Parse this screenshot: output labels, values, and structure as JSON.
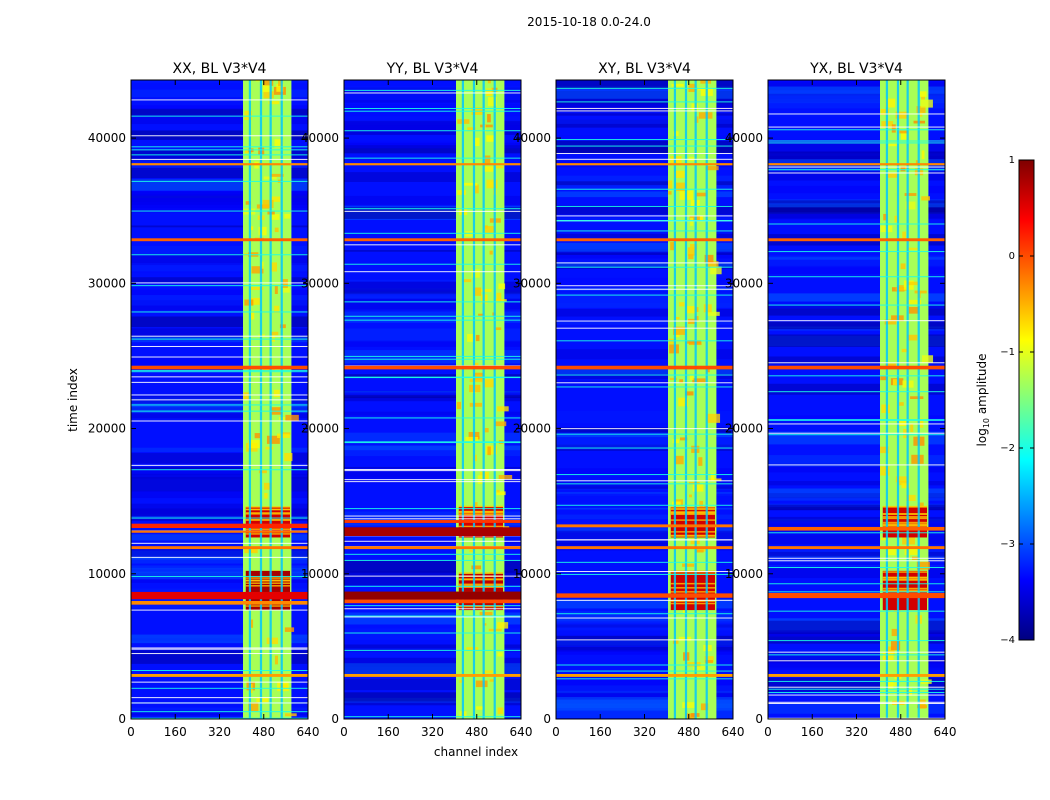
{
  "chart_data": {
    "type": "heatmap",
    "title": "2015-10-18 0.0-24.0",
    "xlabel": "channel index",
    "ylabel": "time index",
    "xlim": [
      0,
      640
    ],
    "ylim": [
      0,
      44000
    ],
    "xticks": [
      0,
      160,
      320,
      480,
      640
    ],
    "yticks": [
      0,
      10000,
      20000,
      30000,
      40000
    ],
    "colorbar": {
      "label_prefix": "log",
      "label_sub": "10",
      "label_suffix": " amplitude",
      "min": -4,
      "max": 1,
      "ticks": [
        1,
        0,
        -1,
        -2,
        -3,
        -4
      ],
      "colormap": "jet",
      "colors": [
        "#00007f",
        "#0000ff",
        "#007fff",
        "#00ffff",
        "#7fff7f",
        "#ffff00",
        "#ff7f00",
        "#ff0000",
        "#7f0000"
      ]
    },
    "band": {
      "channel_start": 405,
      "channel_end": 580,
      "level": -1.3
    },
    "background_level": -3.3,
    "gap_stripes_channels": [
      430,
      470,
      505,
      545
    ],
    "panels": [
      {
        "title": "XX, BL V3*V4",
        "hot_blocks": [
          {
            "t0": 12500,
            "t1": 14600,
            "level": 0.6
          },
          {
            "t0": 7500,
            "t1": 10200,
            "level": 0.8
          }
        ],
        "rfi_rows": [
          {
            "t": 8500,
            "w": 500,
            "level": 0.5
          },
          {
            "t": 8000,
            "w": 250,
            "level": -0.3
          },
          {
            "t": 13300,
            "w": 300,
            "level": 0.2
          },
          {
            "t": 12900,
            "w": 150,
            "level": -0.2
          },
          {
            "t": 24200,
            "w": 250,
            "level": 0.0
          },
          {
            "t": 33000,
            "w": 200,
            "level": -0.1
          },
          {
            "t": 38200,
            "w": 150,
            "level": -0.3
          },
          {
            "t": 11800,
            "w": 200,
            "level": -0.2
          },
          {
            "t": 3000,
            "w": 200,
            "level": -0.4
          }
        ]
      },
      {
        "title": "YY, BL V3*V4",
        "hot_blocks": [
          {
            "t0": 12500,
            "t1": 14600,
            "level": 0.6
          },
          {
            "t0": 7500,
            "t1": 10000,
            "level": 0.7
          }
        ],
        "rfi_rows": [
          {
            "t": 8500,
            "w": 550,
            "level": 0.9
          },
          {
            "t": 8100,
            "w": 250,
            "level": 0.0
          },
          {
            "t": 12900,
            "w": 600,
            "level": 0.8
          },
          {
            "t": 13600,
            "w": 200,
            "level": 0.1
          },
          {
            "t": 24200,
            "w": 250,
            "level": 0.0
          },
          {
            "t": 33000,
            "w": 200,
            "level": -0.1
          },
          {
            "t": 38200,
            "w": 150,
            "level": -0.3
          },
          {
            "t": 11800,
            "w": 200,
            "level": -0.2
          },
          {
            "t": 3000,
            "w": 200,
            "level": -0.4
          }
        ]
      },
      {
        "title": "XY, BL V3*V4",
        "hot_blocks": [
          {
            "t0": 12500,
            "t1": 14600,
            "level": 0.6
          },
          {
            "t0": 7500,
            "t1": 10200,
            "level": 0.6
          }
        ],
        "rfi_rows": [
          {
            "t": 8500,
            "w": 300,
            "level": 0.0
          },
          {
            "t": 13300,
            "w": 200,
            "level": -0.2
          },
          {
            "t": 24200,
            "w": 250,
            "level": 0.0
          },
          {
            "t": 33000,
            "w": 200,
            "level": -0.1
          },
          {
            "t": 38200,
            "w": 150,
            "level": -0.3
          },
          {
            "t": 11800,
            "w": 200,
            "level": -0.2
          },
          {
            "t": 3000,
            "w": 200,
            "level": -0.4
          }
        ]
      },
      {
        "title": "YX, BL V3*V4",
        "hot_blocks": [
          {
            "t0": 12500,
            "t1": 14600,
            "level": 0.6
          },
          {
            "t0": 7500,
            "t1": 10200,
            "level": 0.6
          }
        ],
        "rfi_rows": [
          {
            "t": 8500,
            "w": 350,
            "level": 0.0
          },
          {
            "t": 13100,
            "w": 250,
            "level": -0.1
          },
          {
            "t": 24200,
            "w": 250,
            "level": 0.0
          },
          {
            "t": 33000,
            "w": 200,
            "level": -0.1
          },
          {
            "t": 38200,
            "w": 150,
            "level": -0.3
          },
          {
            "t": 11800,
            "w": 200,
            "level": -0.2
          },
          {
            "t": 3000,
            "w": 200,
            "level": -0.4
          }
        ]
      }
    ]
  }
}
